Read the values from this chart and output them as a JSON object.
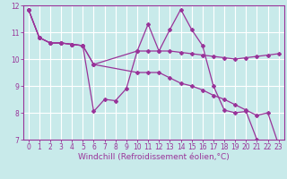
{
  "background_color": "#c8eaea",
  "grid_color": "#ffffff",
  "line_color": "#993399",
  "series": [
    {
      "x": [
        0,
        1,
        2,
        3,
        4,
        5,
        6,
        7,
        8,
        9,
        10,
        11,
        12,
        13,
        14,
        15,
        16,
        17,
        18,
        19,
        20,
        21,
        22,
        23
      ],
      "y": [
        11.85,
        10.8,
        10.6,
        10.6,
        10.55,
        10.5,
        8.05,
        8.5,
        8.45,
        8.9,
        10.3,
        11.3,
        10.3,
        11.1,
        11.85,
        11.1,
        10.5,
        9.0,
        8.1,
        8.0,
        8.05,
        7.0,
        null,
        null
      ]
    },
    {
      "x": [
        0,
        1,
        2,
        3,
        4,
        5,
        6,
        10,
        11,
        12,
        13,
        14,
        15,
        16,
        17,
        18,
        19,
        20,
        21,
        22,
        23
      ],
      "y": [
        11.85,
        10.8,
        10.6,
        10.6,
        10.55,
        10.5,
        9.8,
        10.3,
        10.3,
        10.3,
        10.3,
        10.25,
        10.2,
        10.15,
        10.1,
        10.05,
        10.0,
        10.05,
        10.1,
        10.15,
        10.2
      ]
    },
    {
      "x": [
        0,
        1,
        2,
        3,
        4,
        5,
        6,
        10,
        11,
        12,
        13,
        14,
        15,
        16,
        17,
        18,
        19,
        20,
        21,
        22,
        23
      ],
      "y": [
        11.85,
        10.8,
        10.6,
        10.6,
        10.55,
        10.5,
        9.8,
        9.5,
        9.5,
        9.5,
        9.3,
        9.1,
        9.0,
        8.85,
        8.65,
        8.5,
        8.3,
        8.1,
        7.9,
        8.0,
        6.8
      ]
    }
  ],
  "xlabel": "Windchill (Refroidissement éolien,°C)",
  "xlim": [
    -0.5,
    23.5
  ],
  "ylim": [
    7,
    12
  ],
  "xticks": [
    0,
    1,
    2,
    3,
    4,
    5,
    6,
    7,
    8,
    9,
    10,
    11,
    12,
    13,
    14,
    15,
    16,
    17,
    18,
    19,
    20,
    21,
    22,
    23
  ],
  "yticks": [
    7,
    8,
    9,
    10,
    11,
    12
  ],
  "tick_fontsize": 5.5,
  "xlabel_fontsize": 6.5,
  "marker": "D",
  "markersize": 2.0,
  "linewidth": 0.9
}
